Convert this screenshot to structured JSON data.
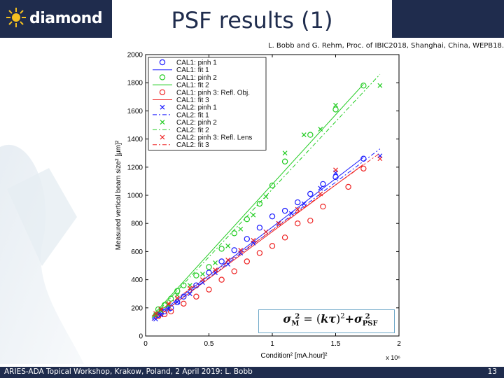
{
  "header": {
    "logo_text": "diamond",
    "title": "PSF results (1)"
  },
  "citation": "L. Bobb and G. Rehm, Proc. of IBIC2018, Shanghai, China, WEPB18.",
  "formula": {
    "lhs": "σ",
    "lhs_sub": "M",
    "lhs_sup": "2",
    "eq": " = (",
    "k": "kτ",
    "close": ")",
    "sq": "2",
    "plus": "+σ",
    "rhs_sub": "PSF",
    "rhs_sup": "2"
  },
  "footer": {
    "text": "ARIES-ADA Topical Workshop, Krakow, Poland, 2 April 2019: L. Bobb",
    "page": "13"
  },
  "colors": {
    "navy": "#1f2c4d",
    "cal_blue": "#1a1aff",
    "cal_green": "#22cc22",
    "cal_red": "#ee2222"
  },
  "chart_data": {
    "type": "scatter",
    "xlabel": "Condition² [mA.hour]²",
    "ylabel": "Measured vertical beam size² [μm]²",
    "x_multiplier": "x 10⁶",
    "xlim": [
      0,
      2
    ],
    "ylim": [
      0,
      2000
    ],
    "x_ticks": [
      0,
      0.5,
      1,
      1.5,
      2
    ],
    "x_tick_labels": [
      "0",
      "0.5",
      "1",
      "1.5",
      "2"
    ],
    "y_ticks": [
      0,
      200,
      400,
      600,
      800,
      1000,
      1200,
      1400,
      1600,
      1800,
      2000
    ],
    "y_tick_labels": [
      "0",
      "200",
      "400",
      "600",
      "800",
      "1000",
      "1200",
      "1400",
      "1600",
      "1800",
      "2000"
    ],
    "legend_position": "top-left",
    "series": [
      {
        "name": "CAL1: pinh 1",
        "kind": "points",
        "marker": "circle",
        "color": "#1a1aff",
        "points": [
          [
            0.1,
            150
          ],
          [
            0.12,
            160
          ],
          [
            0.15,
            175
          ],
          [
            0.2,
            200
          ],
          [
            0.25,
            240
          ],
          [
            0.3,
            280
          ],
          [
            0.4,
            360
          ],
          [
            0.5,
            450
          ],
          [
            0.6,
            530
          ],
          [
            0.7,
            610
          ],
          [
            0.8,
            690
          ],
          [
            0.9,
            770
          ],
          [
            1.0,
            850
          ],
          [
            1.1,
            890
          ],
          [
            1.2,
            950
          ],
          [
            1.3,
            1010
          ],
          [
            1.4,
            1080
          ],
          [
            1.5,
            1130
          ],
          [
            1.72,
            1260
          ]
        ]
      },
      {
        "name": "CAL1: fit 1",
        "kind": "line",
        "dash": "",
        "color": "#1a1aff",
        "points": [
          [
            0.05,
            120
          ],
          [
            1.72,
            1270
          ]
        ]
      },
      {
        "name": "CAL1: pinh 2",
        "kind": "points",
        "marker": "circle",
        "color": "#22cc22",
        "points": [
          [
            0.1,
            190
          ],
          [
            0.15,
            220
          ],
          [
            0.2,
            265
          ],
          [
            0.25,
            320
          ],
          [
            0.3,
            360
          ],
          [
            0.4,
            430
          ],
          [
            0.5,
            490
          ],
          [
            0.6,
            620
          ],
          [
            0.7,
            730
          ],
          [
            0.8,
            830
          ],
          [
            0.9,
            940
          ],
          [
            1.0,
            1070
          ],
          [
            1.1,
            1240
          ],
          [
            1.3,
            1430
          ],
          [
            1.5,
            1610
          ],
          [
            1.72,
            1780
          ]
        ]
      },
      {
        "name": "CAL1: fit 2",
        "kind": "line",
        "dash": "",
        "color": "#22cc22",
        "points": [
          [
            0.05,
            140
          ],
          [
            1.72,
            1790
          ]
        ]
      },
      {
        "name": "CAL1: pinh 3: Refl. Obj.",
        "kind": "points",
        "marker": "circle",
        "color": "#ee2222",
        "points": [
          [
            0.1,
            140
          ],
          [
            0.15,
            155
          ],
          [
            0.2,
            175
          ],
          [
            0.3,
            230
          ],
          [
            0.4,
            280
          ],
          [
            0.5,
            330
          ],
          [
            0.6,
            400
          ],
          [
            0.7,
            460
          ],
          [
            0.8,
            530
          ],
          [
            0.9,
            590
          ],
          [
            1.0,
            640
          ],
          [
            1.1,
            700
          ],
          [
            1.2,
            800
          ],
          [
            1.3,
            820
          ],
          [
            1.4,
            920
          ],
          [
            1.6,
            1060
          ],
          [
            1.72,
            1190
          ]
        ]
      },
      {
        "name": "CAL1: fit 3",
        "kind": "line",
        "dash": "",
        "color": "#ee2222",
        "points": [
          [
            0.05,
            110
          ],
          [
            1.72,
            1220
          ]
        ]
      },
      {
        "name": "CAL2: pinh 1",
        "kind": "points",
        "marker": "x",
        "color": "#1a1aff",
        "points": [
          [
            0.08,
            120
          ],
          [
            0.12,
            150
          ],
          [
            0.18,
            190
          ],
          [
            0.25,
            240
          ],
          [
            0.35,
            300
          ],
          [
            0.45,
            380
          ],
          [
            0.55,
            450
          ],
          [
            0.65,
            510
          ],
          [
            0.75,
            590
          ],
          [
            0.85,
            660
          ],
          [
            0.95,
            740
          ],
          [
            1.05,
            800
          ],
          [
            1.15,
            870
          ],
          [
            1.25,
            940
          ],
          [
            1.38,
            1050
          ],
          [
            1.5,
            1160
          ],
          [
            1.85,
            1280
          ]
        ]
      },
      {
        "name": "CAL2: fit 1",
        "kind": "line",
        "dash": "6,3,2,3",
        "color": "#1a1aff",
        "points": [
          [
            0.05,
            110
          ],
          [
            1.85,
            1330
          ]
        ]
      },
      {
        "name": "CAL2: pinh 2",
        "kind": "points",
        "marker": "x",
        "color": "#22cc22",
        "points": [
          [
            0.08,
            150
          ],
          [
            0.12,
            180
          ],
          [
            0.18,
            220
          ],
          [
            0.25,
            290
          ],
          [
            0.35,
            360
          ],
          [
            0.45,
            440
          ],
          [
            0.55,
            520
          ],
          [
            0.65,
            640
          ],
          [
            0.75,
            760
          ],
          [
            0.85,
            860
          ],
          [
            0.95,
            990
          ],
          [
            1.1,
            1300
          ],
          [
            1.25,
            1430
          ],
          [
            1.38,
            1470
          ],
          [
            1.5,
            1640
          ],
          [
            1.85,
            1780
          ]
        ]
      },
      {
        "name": "CAL2: fit 2",
        "kind": "line",
        "dash": "6,3,2,3",
        "color": "#22cc22",
        "points": [
          [
            0.05,
            130
          ],
          [
            1.85,
            1860
          ]
        ]
      },
      {
        "name": "CAL2: pinh 3: Refl. Lens",
        "kind": "points",
        "marker": "x",
        "color": "#ee2222",
        "points": [
          [
            0.08,
            160
          ],
          [
            0.12,
            190
          ],
          [
            0.18,
            230
          ],
          [
            0.25,
            270
          ],
          [
            0.35,
            340
          ],
          [
            0.45,
            400
          ],
          [
            0.55,
            470
          ],
          [
            0.65,
            540
          ],
          [
            0.75,
            610
          ],
          [
            0.85,
            680
          ],
          [
            0.95,
            740
          ],
          [
            1.05,
            800
          ],
          [
            1.2,
            900
          ],
          [
            1.38,
            1010
          ],
          [
            1.5,
            1180
          ],
          [
            1.85,
            1260
          ]
        ]
      },
      {
        "name": "CAL2: fit 3",
        "kind": "line",
        "dash": "6,3,2,3",
        "color": "#ee2222",
        "points": [
          [
            0.05,
            140
          ],
          [
            1.85,
            1300
          ]
        ]
      }
    ]
  }
}
